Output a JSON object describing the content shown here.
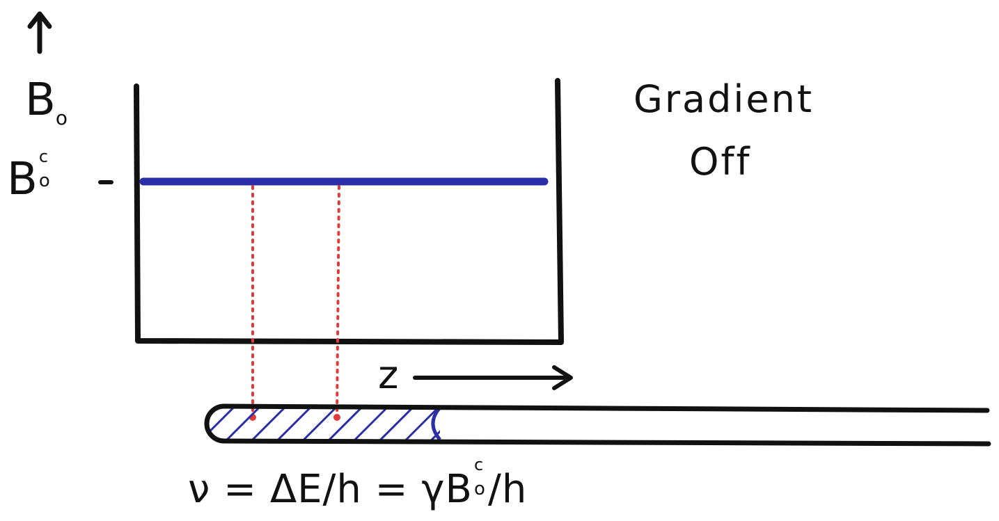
{
  "figure": {
    "title_line1": "Gradient",
    "title_line2": "Off",
    "axis": {
      "field_symbol": "B",
      "field_subscript": "o",
      "level_symbol": "B",
      "level_superscript": "c",
      "level_subscript": "o",
      "level_tick": "-",
      "position_label": "z"
    },
    "equation": {
      "lhs": "ν",
      "middle": "= ΔE/h =",
      "gamma": "γ",
      "field": "B",
      "field_sup": "c",
      "field_sub": "o",
      "tail": "/h"
    },
    "colors": {
      "field_line": "#2a2fa8",
      "hatch": "#2a2fa8",
      "projection_dots": "#e03a3a",
      "ink": "#111111"
    }
  }
}
